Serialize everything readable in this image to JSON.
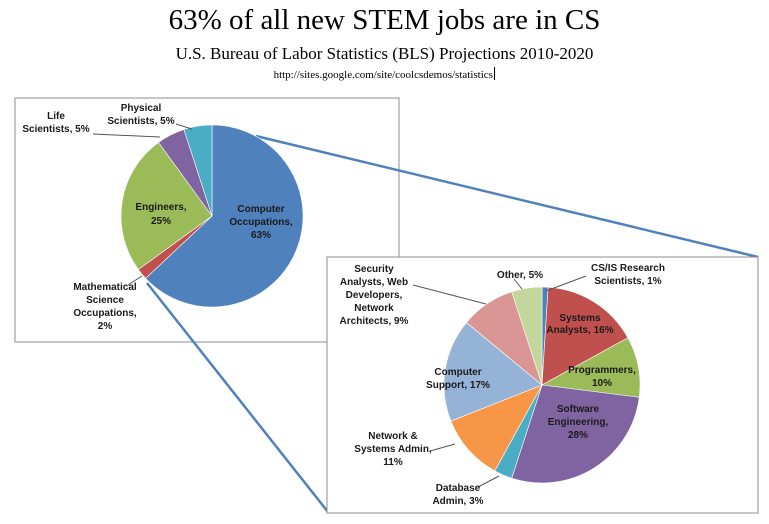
{
  "title": "63% of all new STEM jobs are in CS",
  "subtitle": "U.S. Bureau of Labor Statistics (BLS) Projections 2010-2020",
  "source_url": "http://sites.google.com/site/coolcsdemos/statistics",
  "chart_data": [
    {
      "type": "pie",
      "title": "",
      "slices": [
        {
          "label": "Computer Occupations, 63%",
          "value": 63,
          "color": "#4f81bd"
        },
        {
          "label": "Mathematical Science Occupations, 2%",
          "value": 2,
          "color": "#c0504d"
        },
        {
          "label": "Engineers, 25%",
          "value": 25,
          "color": "#9bbb59"
        },
        {
          "label": "Life Scientists, 5%",
          "value": 5,
          "color": "#8064a2"
        },
        {
          "label": "Physical Scientists, 5%",
          "value": 5,
          "color": "#4bacc6"
        }
      ]
    },
    {
      "type": "pie",
      "title": "",
      "slices": [
        {
          "label": "CS/IS Research Scientists, 1%",
          "value": 1,
          "color": "#4f81bd"
        },
        {
          "label": "Systems Analysts, 16%",
          "value": 16,
          "color": "#c0504d"
        },
        {
          "label": "Programmers, 10%",
          "value": 10,
          "color": "#9bbb59"
        },
        {
          "label": "Software Engineering, 28%",
          "value": 28,
          "color": "#8064a2"
        },
        {
          "label": "Database Admin, 3%",
          "value": 3,
          "color": "#4bacc6"
        },
        {
          "label": "Network & Systems Admin, 11%",
          "value": 11,
          "color": "#f79646"
        },
        {
          "label": "Computer Support, 17%",
          "value": 17,
          "color": "#95b3d7"
        },
        {
          "label": "Security Analysts, Web Developers, Network Architects, 9%",
          "value": 9,
          "color": "#d99694"
        },
        {
          "label": "Other, 5%",
          "value": 5,
          "color": "#c3d69b"
        }
      ]
    }
  ],
  "label_lines": {
    "pie1": {
      "computer": [
        "Computer",
        "Occupations,",
        "63%"
      ],
      "math": [
        "Mathematical",
        "Science",
        "Occupations,",
        "2%"
      ],
      "engineers": [
        "Engineers,",
        "25%"
      ],
      "life": [
        "Life",
        "Scientists, 5%"
      ],
      "physical": [
        "Physical",
        "Scientists, 5%"
      ]
    },
    "pie2": {
      "research": [
        "CS/IS Research",
        "Scientists, 1%"
      ],
      "systems": [
        "Systems",
        "Analysts, 16%"
      ],
      "programmers": [
        "Programmers,",
        "10%"
      ],
      "software": [
        "Software",
        "Engineering,",
        "28%"
      ],
      "database": [
        "Database",
        "Admin, 3%"
      ],
      "network": [
        "Network &",
        "Systems Admin,",
        "11%"
      ],
      "support": [
        "Computer",
        "Support, 17%"
      ],
      "security": [
        "Security",
        "Analysts, Web",
        "Developers,",
        "Network",
        "Architects, 9%"
      ],
      "other": [
        "Other, 5%"
      ]
    }
  }
}
